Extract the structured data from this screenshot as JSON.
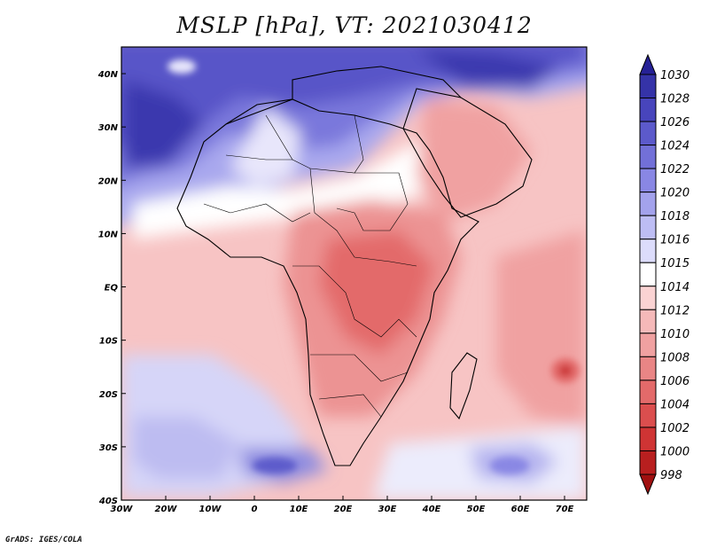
{
  "title": "MSLP [hPa], VT: 2021030412",
  "credit": "GrADS: IGES/COLA",
  "map": {
    "lon_range": [
      -30,
      75
    ],
    "lat_range": [
      -40,
      45
    ],
    "x_ticks": [
      "30W",
      "20W",
      "10W",
      "0",
      "10E",
      "20E",
      "30E",
      "40E",
      "50E",
      "60E",
      "70E"
    ],
    "y_ticks": [
      "40S",
      "30S",
      "20S",
      "10S",
      "EQ",
      "10N",
      "20N",
      "30N",
      "40N"
    ]
  },
  "colorbar": {
    "labels": [
      "1030",
      "1028",
      "1026",
      "1024",
      "1022",
      "1020",
      "1018",
      "1016",
      "1015",
      "1014",
      "1012",
      "1010",
      "1008",
      "1006",
      "1004",
      "1002",
      "1000",
      "998"
    ],
    "colors": [
      "#262196",
      "#3533a8",
      "#4845bc",
      "#5c5acb",
      "#7270d8",
      "#8987e4",
      "#a3a2ec",
      "#bdbdf4",
      "#dcdcfb",
      "#ffffff",
      "#fad3d3",
      "#f5b9b9",
      "#f0a1a1",
      "#e98585",
      "#e36a6a",
      "#db4e4e",
      "#cf3434",
      "#b81f1f",
      "#a01010"
    ]
  }
}
